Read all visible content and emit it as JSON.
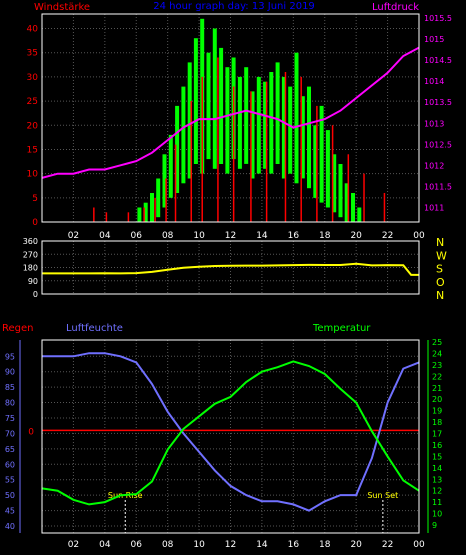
{
  "colors": {
    "wind": "#00ff00",
    "gust": "#ff0000",
    "pressure": "#ff00ff",
    "direction": "#ffff00",
    "humidity": "#7070ff",
    "temperature": "#00ff00",
    "rain": "#ff0000",
    "frame": "#ffffff",
    "title": "#0000ff",
    "axis_green": "#00ff00"
  },
  "chart_data": [
    {
      "type": "area",
      "id": "wind-pressure",
      "title": "24 hour graph day: 13 Juni 2019",
      "left_label": "Windstärke",
      "right_label": "Luftdruck",
      "x_ticks": [
        "02",
        "04",
        "06",
        "08",
        "10",
        "12",
        "14",
        "16",
        "18",
        "20",
        "22",
        "00"
      ],
      "xlim": [
        0,
        24
      ],
      "left_axis": {
        "ylim": [
          0,
          43
        ],
        "ticks": [
          "0",
          "5",
          "10",
          "15",
          "20",
          "25",
          "30",
          "35",
          "40"
        ]
      },
      "right_axis": {
        "ylim": [
          1010.65,
          1015.6
        ],
        "ticks": [
          "1011",
          "1011.5",
          "1012",
          "1012.5",
          "1013",
          "1013.5",
          "1014",
          "1014.5",
          "1015",
          "1015.5"
        ]
      },
      "series": [
        {
          "name": "Windstärke",
          "kind": "wind",
          "axis": "left",
          "x": [
            6.2,
            6.6,
            7.0,
            7.4,
            7.8,
            8.2,
            8.6,
            9.0,
            9.4,
            9.8,
            10.2,
            10.6,
            11.0,
            11.4,
            11.8,
            12.2,
            12.6,
            13.0,
            13.4,
            13.8,
            14.2,
            14.6,
            15.0,
            15.4,
            15.8,
            16.2,
            16.6,
            17.0,
            17.4,
            17.8,
            18.2,
            18.6,
            19.0,
            19.4,
            19.8,
            20.2
          ],
          "high": [
            3,
            4,
            6,
            9,
            14,
            18,
            24,
            28,
            33,
            38,
            42,
            35,
            40,
            36,
            32,
            34,
            30,
            32,
            27,
            30,
            29,
            31,
            33,
            30,
            28,
            35,
            26,
            28,
            20,
            24,
            19,
            14,
            12,
            8,
            6,
            3
          ],
          "low": [
            0,
            0,
            0,
            1,
            3,
            5,
            6,
            8,
            9,
            12,
            10,
            13,
            11,
            12,
            10,
            13,
            11,
            12,
            9,
            10,
            11,
            10,
            12,
            9,
            10,
            8,
            9,
            7,
            5,
            4,
            3,
            2,
            1,
            0,
            0,
            0
          ]
        },
        {
          "name": "Gusts",
          "kind": "gust",
          "axis": "left",
          "x": [
            3.3,
            4.1,
            5.5,
            6.5,
            7.2,
            7.9,
            8.5,
            9.5,
            10.2,
            11.2,
            12.2,
            13.3,
            14.3,
            15.5,
            16.5,
            17.5,
            18.5,
            19.5,
            20.5,
            21.8
          ],
          "y": [
            3,
            2,
            2,
            3,
            5,
            9,
            16,
            25,
            30,
            34,
            28,
            27,
            29,
            31,
            30,
            24,
            20,
            14,
            10,
            6
          ]
        },
        {
          "name": "Luftdruck",
          "kind": "pressure",
          "axis": "right",
          "x": [
            0,
            1,
            2,
            3,
            4,
            5,
            6,
            7,
            8,
            9,
            10,
            11,
            12,
            13,
            14,
            15,
            16,
            17,
            18,
            19,
            20,
            21,
            22,
            23,
            24
          ],
          "y": [
            1011.7,
            1011.8,
            1011.8,
            1011.9,
            1011.9,
            1012.0,
            1012.1,
            1012.3,
            1012.6,
            1012.9,
            1013.1,
            1013.1,
            1013.2,
            1013.3,
            1013.2,
            1013.1,
            1012.9,
            1013.0,
            1013.1,
            1013.3,
            1013.6,
            1013.9,
            1014.2,
            1014.6,
            1014.8
          ]
        }
      ]
    },
    {
      "type": "line",
      "id": "wind-direction",
      "xlim": [
        0,
        24
      ],
      "left_axis": {
        "ylim": [
          0,
          360
        ],
        "ticks": [
          "0",
          "90",
          "180",
          "270",
          "360"
        ]
      },
      "compass": [
        "N",
        "W",
        "S",
        "O",
        "N"
      ],
      "series": [
        {
          "name": "direction",
          "kind": "direction",
          "x": [
            0,
            1,
            2,
            3,
            4,
            5,
            6,
            7,
            8,
            9,
            10,
            11,
            12,
            13,
            14,
            15,
            16,
            17,
            18,
            19,
            20,
            21,
            22,
            23,
            23.5,
            24
          ],
          "y": [
            140,
            140,
            140,
            140,
            141,
            140,
            142,
            150,
            165,
            178,
            185,
            190,
            192,
            193,
            193,
            194,
            196,
            198,
            197,
            197,
            205,
            194,
            196,
            195,
            130,
            130
          ]
        }
      ]
    },
    {
      "type": "line",
      "id": "humidity-temperature",
      "labels": {
        "rain": "Regen",
        "humidity": "Luftfeuchte",
        "temperature": "Temperatur"
      },
      "x_ticks": [
        "02",
        "04",
        "06",
        "08",
        "10",
        "12",
        "14",
        "16",
        "18",
        "20",
        "22",
        "00"
      ],
      "xlim": [
        0,
        24
      ],
      "humidity_axis": {
        "ylim": [
          40,
          98
        ],
        "ticks": [
          "40",
          "45",
          "50",
          "55",
          "60",
          "65",
          "70",
          "75",
          "80",
          "85",
          "90",
          "95"
        ]
      },
      "rain_axis": {
        "zero_value": 71,
        "label": "0"
      },
      "temperature_axis": {
        "ylim": [
          9,
          25
        ],
        "ticks": [
          "9",
          "10",
          "11",
          "12",
          "13",
          "14",
          "15",
          "16",
          "17",
          "18",
          "19",
          "20",
          "21",
          "22",
          "23",
          "24",
          "25"
        ]
      },
      "annotations": [
        {
          "text": "Sun Rise",
          "x": 5.3
        },
        {
          "text": "Sun Set",
          "x": 21.7
        }
      ],
      "series": [
        {
          "name": "Luftfeuchte",
          "kind": "humidity",
          "axis": "humidity",
          "x": [
            0,
            1,
            2,
            3,
            4,
            5,
            6,
            7,
            8,
            9,
            10,
            11,
            12,
            13,
            14,
            15,
            16,
            17,
            18,
            19,
            20,
            21,
            22,
            23,
            24
          ],
          "y": [
            95,
            95,
            95,
            96,
            96,
            95,
            93,
            86,
            77,
            70,
            64,
            58,
            53,
            50,
            48,
            48,
            47,
            45,
            48,
            50,
            50,
            62,
            80,
            91,
            93
          ]
        },
        {
          "name": "Temperatur",
          "kind": "temperature",
          "axis": "temperature",
          "x": [
            0,
            1,
            2,
            3,
            4,
            5,
            6,
            7,
            8,
            9,
            10,
            11,
            12,
            13,
            14,
            15,
            16,
            17,
            18,
            19,
            20,
            21,
            22,
            23,
            24
          ],
          "y": [
            12.2,
            12.0,
            11.2,
            10.8,
            11.0,
            11.6,
            11.7,
            12.8,
            15.6,
            17.4,
            18.5,
            19.6,
            20.2,
            21.5,
            22.4,
            22.8,
            23.3,
            22.9,
            22.2,
            20.9,
            19.7,
            17.2,
            15.0,
            12.9,
            12.0
          ]
        }
      ]
    }
  ]
}
